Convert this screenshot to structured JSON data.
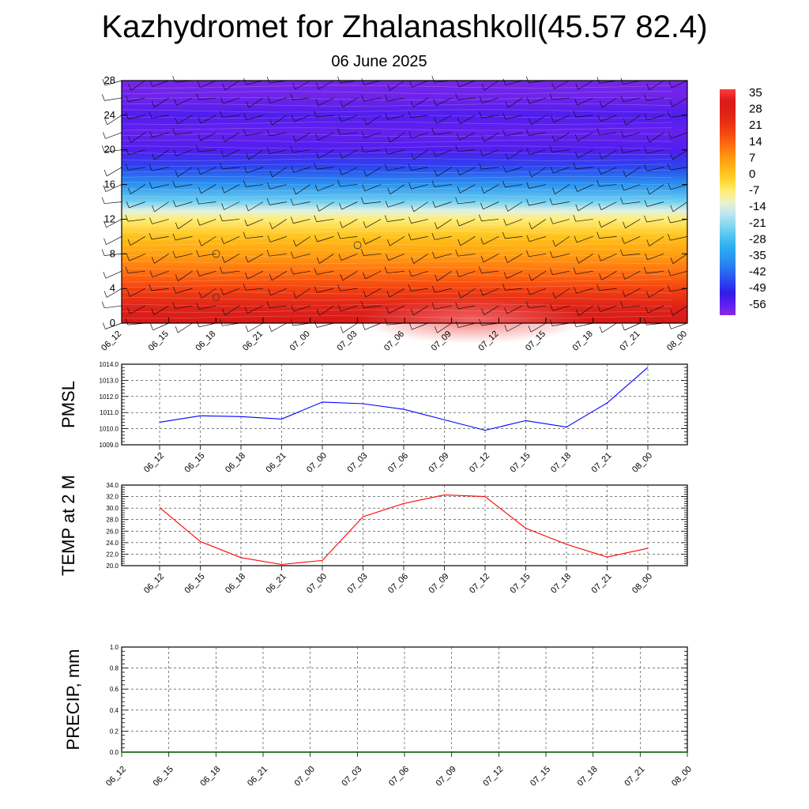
{
  "title": "Kazhydromet for Zhalanashkoll(45.57 82.4)",
  "subtitle": "06 June 2025",
  "chart_data": [
    {
      "type": "heatmap",
      "title": "",
      "xlabel": "",
      "ylabel": "",
      "x_ticks": [
        "06_12",
        "06_15",
        "06_18",
        "06_21",
        "07_00",
        "07_03",
        "07_06",
        "07_09",
        "07_12",
        "07_15",
        "07_18",
        "07_21",
        "08_00"
      ],
      "y_ticks": [
        0,
        4,
        8,
        12,
        16,
        20,
        24,
        28
      ],
      "ylim": [
        0,
        28
      ],
      "colorbar_ticks": [
        35,
        28,
        21,
        14,
        7,
        0,
        -7,
        -14,
        -21,
        -28,
        -35,
        -42,
        -49,
        -56
      ],
      "profile": [
        {
          "level": 0,
          "value": 30
        },
        {
          "level": 2,
          "value": 24
        },
        {
          "level": 4,
          "value": 17
        },
        {
          "level": 6,
          "value": 11
        },
        {
          "level": 8,
          "value": 5
        },
        {
          "level": 10,
          "value": 0
        },
        {
          "level": 12,
          "value": -8
        },
        {
          "level": 13,
          "value": -14
        },
        {
          "level": 14,
          "value": -24
        },
        {
          "level": 16,
          "value": -36
        },
        {
          "level": 18,
          "value": -46
        },
        {
          "level": 20,
          "value": -54
        },
        {
          "level": 22,
          "value": -56
        },
        {
          "level": 24,
          "value": -54
        },
        {
          "level": 26,
          "value": -57
        },
        {
          "level": 28,
          "value": -58
        }
      ],
      "colors": {
        "warm": "#dd1a1a",
        "cold": "#7a2cf0",
        "accent": "#ff3b3b"
      }
    },
    {
      "type": "line",
      "ylabel": "PMSL",
      "x": [
        "06_12",
        "06_15",
        "06_18",
        "06_21",
        "07_00",
        "07_03",
        "07_06",
        "07_09",
        "07_12",
        "07_15",
        "07_18",
        "07_21",
        "08_00"
      ],
      "values": [
        1010.4,
        1010.8,
        1010.75,
        1010.6,
        1011.65,
        1011.55,
        1011.2,
        1010.55,
        1009.9,
        1010.5,
        1010.1,
        1011.6,
        1013.8
      ],
      "ylim": [
        1009.0,
        1014.0
      ],
      "y_ticks": [
        "1009.0",
        "1010.0",
        "1011.0",
        "1012.0",
        "1013.0",
        "1014.0"
      ],
      "color": "#0000ff"
    },
    {
      "type": "line",
      "ylabel": "TEMP at 2 M",
      "x": [
        "06_12",
        "06_15",
        "06_18",
        "06_21",
        "07_00",
        "07_03",
        "07_06",
        "07_09",
        "07_12",
        "07_15",
        "07_18",
        "07_21",
        "08_00"
      ],
      "values": [
        30.1,
        24.2,
        21.4,
        20.2,
        20.9,
        28.5,
        30.8,
        32.3,
        32.0,
        26.5,
        23.7,
        21.5,
        23.0
      ],
      "ylim": [
        20.0,
        34.0
      ],
      "y_ticks": [
        "20.0",
        "22.0",
        "24.0",
        "26.0",
        "28.0",
        "30.0",
        "32.0",
        "34.0"
      ],
      "color": "#ff0000"
    },
    {
      "type": "line",
      "ylabel": "PRECIP, mm",
      "x": [
        "06_12",
        "06_15",
        "06_18",
        "06_21",
        "07_00",
        "07_03",
        "07_06",
        "07_09",
        "07_12",
        "07_15",
        "07_18",
        "07_21",
        "08_00"
      ],
      "values": [
        0,
        0,
        0,
        0,
        0,
        0,
        0,
        0,
        0,
        0,
        0,
        0,
        0
      ],
      "ylim": [
        0.0,
        1.0
      ],
      "y_ticks": [
        "0.0",
        "0.2",
        "0.4",
        "0.6",
        "0.8",
        "1.0"
      ],
      "color": "#006400"
    }
  ]
}
